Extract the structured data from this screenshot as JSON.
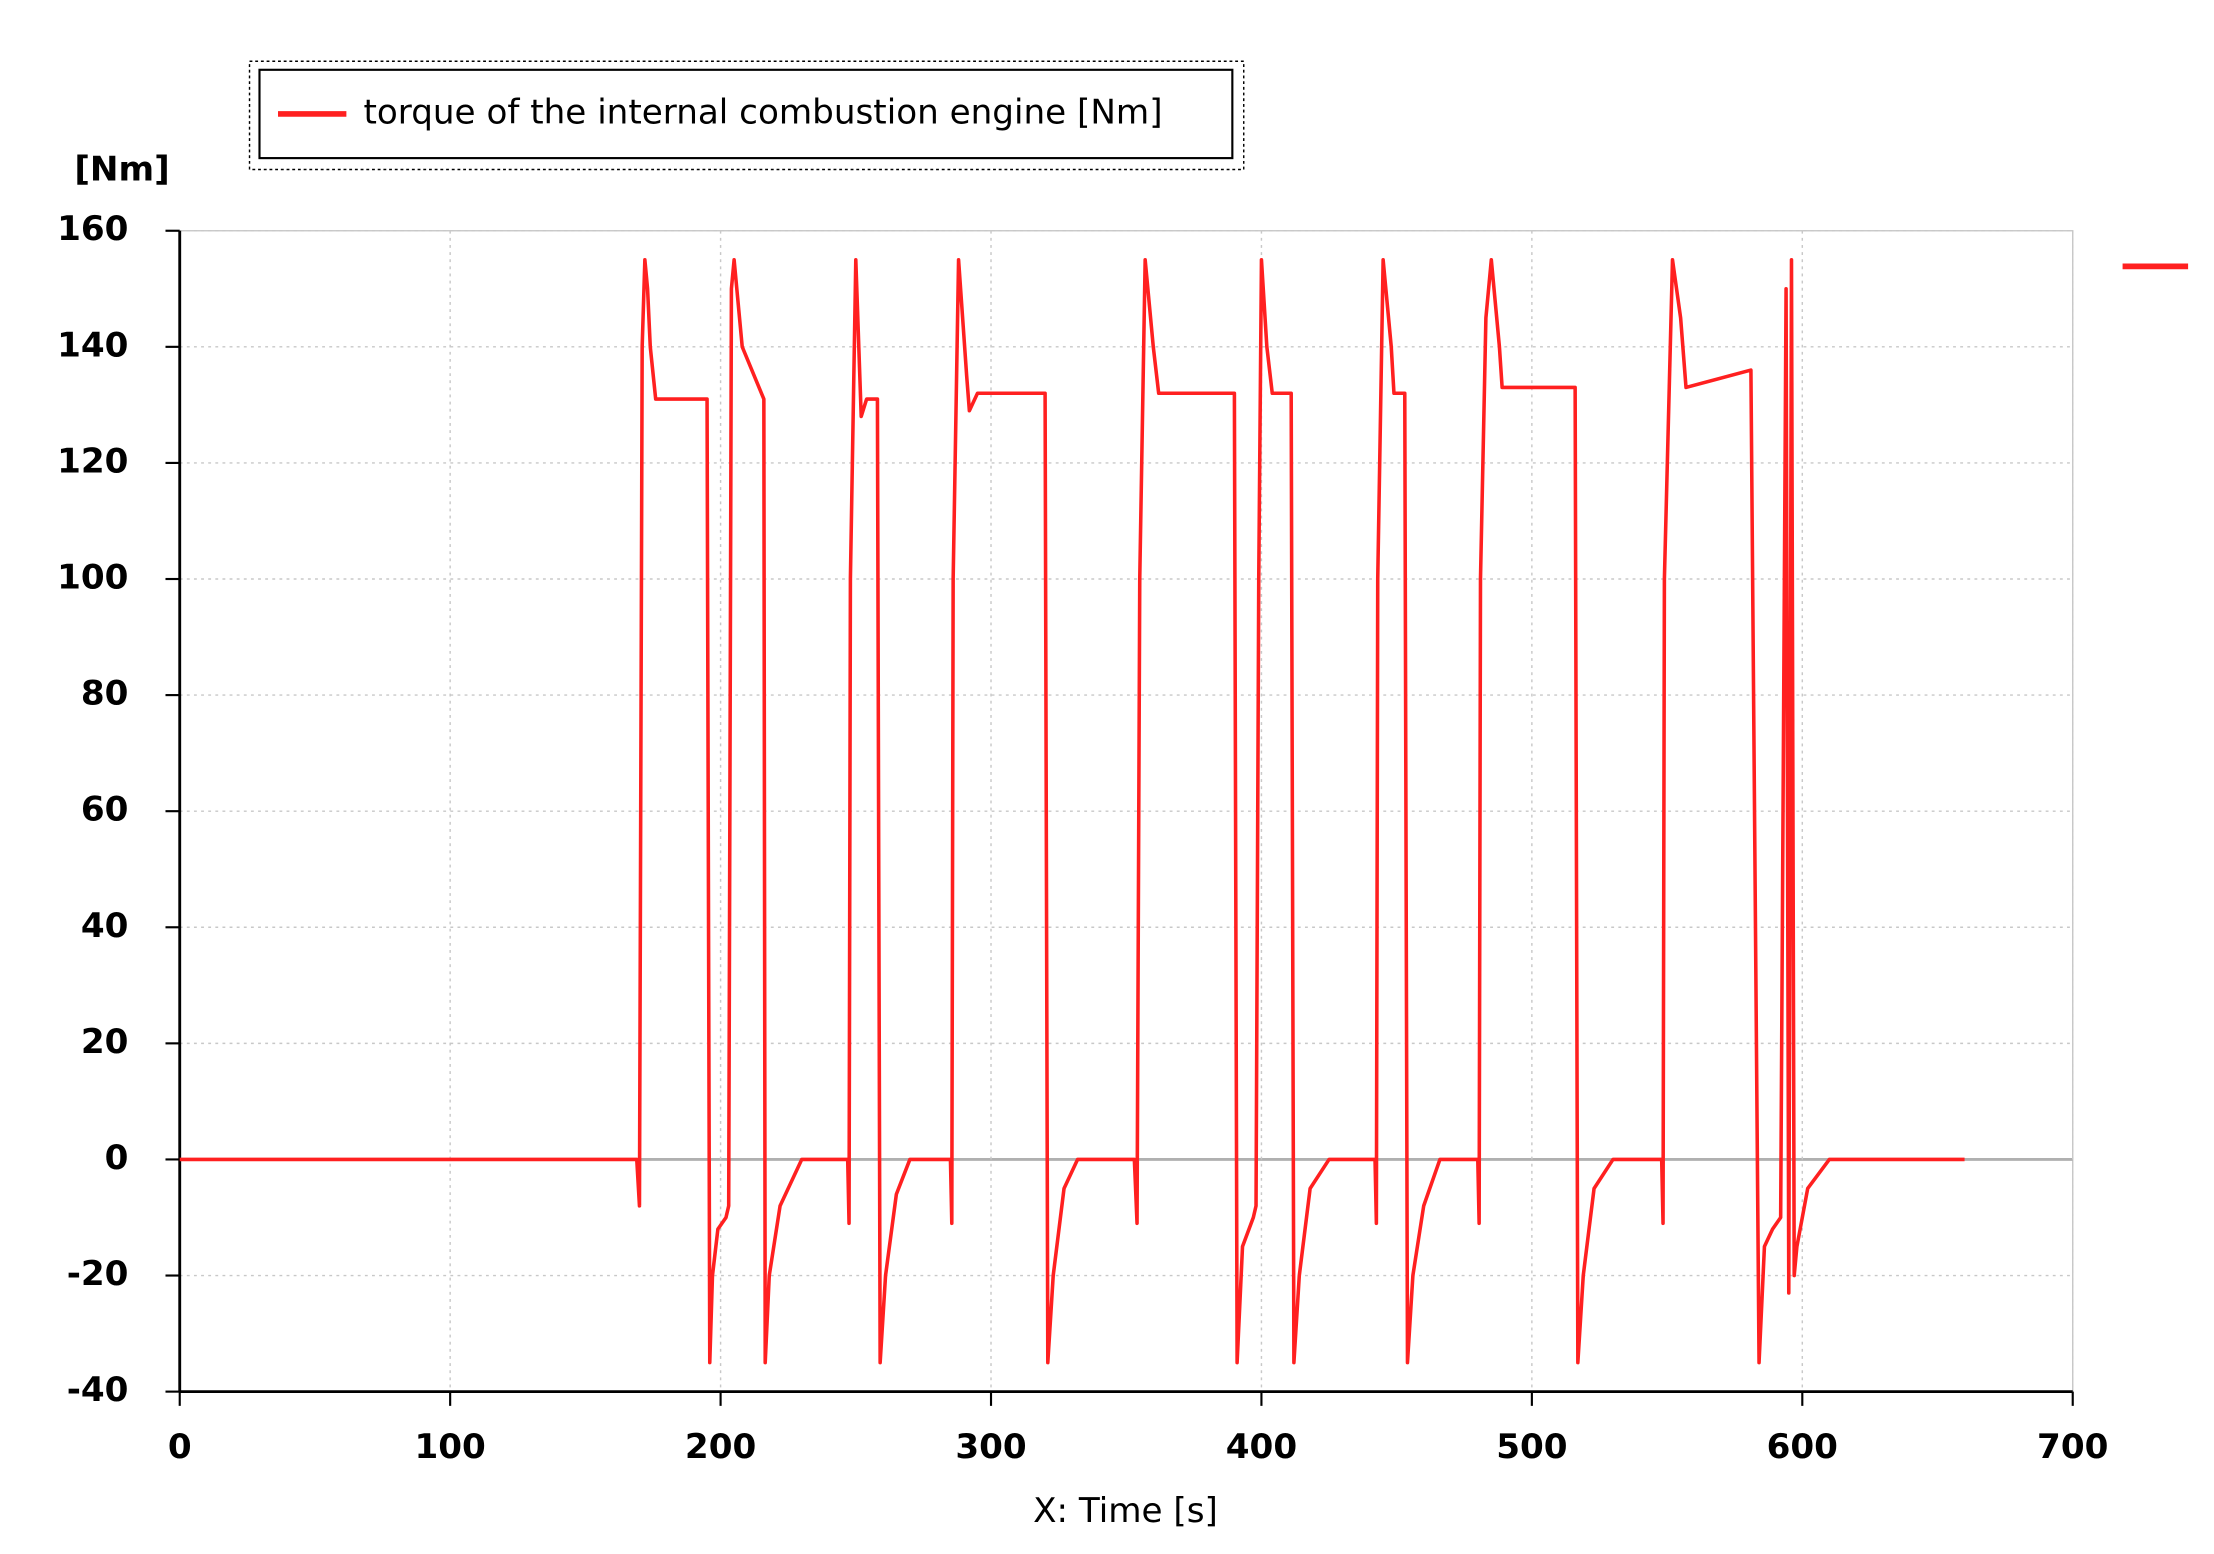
{
  "chart_data": {
    "type": "line",
    "y_label": "[Nm]",
    "x_label": "X: Time [s]",
    "xlim": [
      0,
      700
    ],
    "ylim": [
      -40,
      160
    ],
    "xticks": [
      0,
      100,
      200,
      300,
      400,
      500,
      600,
      700
    ],
    "yticks": [
      -40,
      -20,
      0,
      20,
      40,
      60,
      80,
      100,
      120,
      140,
      160
    ],
    "grid": true,
    "series": [
      {
        "name": "torque of the internal combustion engine [Nm]",
        "color": "#ff2020",
        "x": [
          0,
          169,
          170,
          171,
          172,
          173,
          174,
          176,
          195,
          196,
          197,
          199,
          202,
          203,
          204,
          205,
          208,
          216,
          216.5,
          218,
          222,
          230,
          247,
          247.5,
          248,
          250,
          252,
          254,
          258,
          259,
          261,
          265,
          270,
          285,
          285.5,
          286,
          288,
          291,
          292,
          295,
          320,
          321,
          323,
          327,
          332,
          353,
          354,
          355,
          357,
          360,
          362,
          390,
          391,
          393,
          397,
          398,
          399,
          400,
          402,
          404,
          411,
          412,
          414,
          418,
          425,
          442,
          442.5,
          443,
          445,
          448,
          449,
          453,
          454,
          456,
          460,
          466,
          480,
          480.5,
          481,
          483,
          485,
          488,
          489,
          516,
          517,
          519,
          523,
          530,
          548,
          548.5,
          549,
          552,
          555,
          557,
          581,
          584,
          586,
          589,
          592,
          594,
          595,
          596,
          597,
          598,
          602,
          610,
          660
        ],
        "values": [
          0,
          0,
          -8,
          140,
          155,
          150,
          140,
          131,
          131,
          -35,
          -20,
          -12,
          -10,
          -8,
          150,
          155,
          140,
          131,
          -35,
          -20,
          -8,
          0,
          0,
          -11,
          100,
          155,
          128,
          131,
          131,
          -35,
          -20,
          -6,
          0,
          0,
          -11,
          100,
          155,
          135,
          129,
          132,
          132,
          -35,
          -20,
          -5,
          0,
          0,
          -11,
          100,
          155,
          140,
          132,
          132,
          -35,
          -15,
          -10,
          -8,
          100,
          155,
          140,
          132,
          132,
          -35,
          -20,
          -5,
          0,
          0,
          -11,
          100,
          155,
          140,
          132,
          132,
          -35,
          -20,
          -8,
          0,
          0,
          -11,
          100,
          145,
          155,
          140,
          133,
          133,
          -35,
          -20,
          -5,
          0,
          0,
          -11,
          100,
          155,
          145,
          133,
          136,
          -35,
          -15,
          -12,
          -10,
          150,
          -23,
          155,
          -20,
          -15,
          -5,
          0,
          0
        ]
      }
    ]
  }
}
